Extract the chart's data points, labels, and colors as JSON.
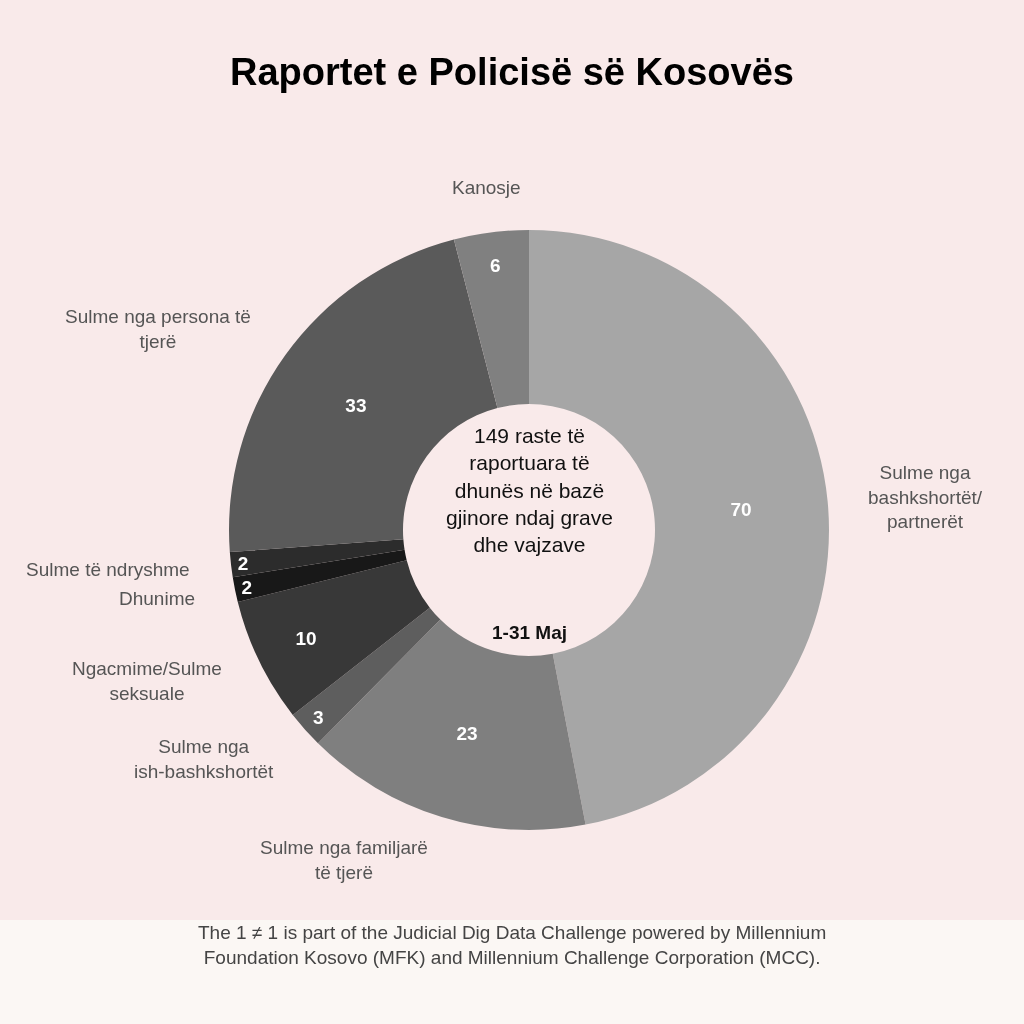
{
  "chart_data": {
    "type": "donut",
    "title": "Raportet e Policisë së Kosovës",
    "categories": [
      "Sulme nga bashkshortët/ partnerët",
      "Sulme nga familjarë të tjerë",
      "Sulme nga ish-bashkshortët",
      "Ngacmime/Sulme seksuale",
      "Dhunime",
      "Sulme të ndryshme",
      "Sulme nga persona të tjerë",
      "Kanosje"
    ],
    "values": [
      70,
      23,
      3,
      10,
      2,
      2,
      33,
      6
    ],
    "colors": [
      "#a6a6a6",
      "#7f7f7f",
      "#5e5e5e",
      "#383838",
      "#181818",
      "#2c2c2c",
      "#5a5a5a",
      "#808080"
    ],
    "data_labels": true,
    "annotations": [
      "149 raste të raportuara të dhunës në bazë gjinore ndaj grave dhe vajzave",
      "1-31 Maj",
      "The 1 ≠ 1 is part of the Judicial Dig Data Challenge powered by Millennium Foundation Kosovo (MFK) and Millennium Challenge Corporation (MCC)."
    ]
  }
}
